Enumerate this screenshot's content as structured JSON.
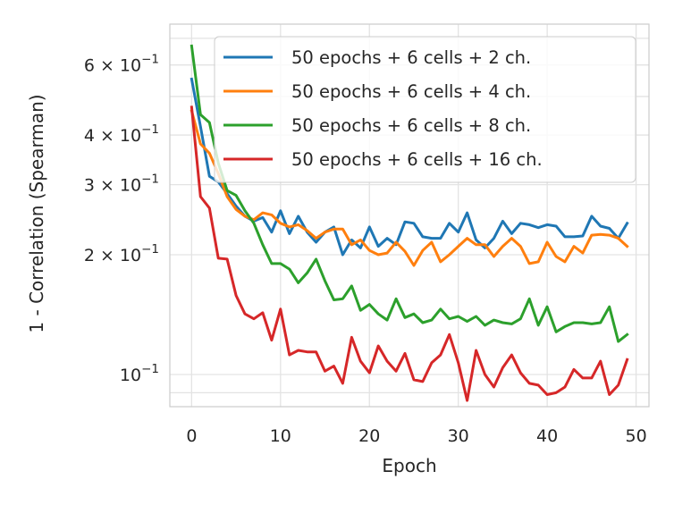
{
  "chart_data": {
    "type": "line",
    "title": "",
    "xlabel": "Epoch",
    "ylabel": "1 - Correlation (Spearman)",
    "yscale": "log",
    "xlim": [
      -2.45,
      51.45
    ],
    "ylim": [
      0.083,
      0.76
    ],
    "grid": true,
    "legend_position": "top-right",
    "x_ticks": [
      0,
      10,
      20,
      30,
      40,
      50
    ],
    "x_tick_labels": [
      "0",
      "10",
      "20",
      "30",
      "40",
      "50"
    ],
    "y_major_ticks": [
      0.1
    ],
    "y_major_tick_labels": [
      {
        "base": "10",
        "exp": "−1"
      }
    ],
    "y_minor_ticks": [
      0.2,
      0.3,
      0.4,
      0.6
    ],
    "y_minor_tick_labels": [
      {
        "base": "2 × 10",
        "exp": "−1"
      },
      {
        "base": "3 × 10",
        "exp": "−1"
      },
      {
        "base": "4 × 10",
        "exp": "−1"
      },
      {
        "base": "6 × 10",
        "exp": "−1"
      }
    ],
    "y_minor_grid": [
      0.09,
      0.5,
      0.7
    ],
    "series": [
      {
        "name": "50 epochs + 6 cells + 2 ch.",
        "color": "#1f77b4",
        "x": [
          0,
          1,
          2,
          3,
          4,
          5,
          6,
          7,
          8,
          9,
          10,
          11,
          12,
          13,
          14,
          15,
          16,
          17,
          18,
          19,
          20,
          21,
          22,
          23,
          24,
          25,
          26,
          27,
          28,
          29,
          30,
          31,
          32,
          33,
          34,
          35,
          36,
          37,
          38,
          39,
          40,
          41,
          42,
          43,
          44,
          45,
          46,
          47,
          48,
          49
        ],
        "values": [
          0.553,
          0.42,
          0.315,
          0.305,
          0.285,
          0.265,
          0.25,
          0.243,
          0.248,
          0.228,
          0.258,
          0.226,
          0.25,
          0.228,
          0.215,
          0.228,
          0.235,
          0.2,
          0.218,
          0.208,
          0.235,
          0.21,
          0.22,
          0.212,
          0.242,
          0.24,
          0.222,
          0.22,
          0.22,
          0.24,
          0.228,
          0.255,
          0.218,
          0.208,
          0.22,
          0.243,
          0.226,
          0.24,
          0.238,
          0.234,
          0.238,
          0.236,
          0.222,
          0.222,
          0.223,
          0.25,
          0.236,
          0.233,
          0.22,
          0.24
        ]
      },
      {
        "name": "50 epochs + 6 cells + 4 ch.",
        "color": "#ff7f0e",
        "x": [
          0,
          1,
          2,
          3,
          4,
          5,
          6,
          7,
          8,
          9,
          10,
          11,
          12,
          13,
          14,
          15,
          16,
          17,
          18,
          19,
          20,
          21,
          22,
          23,
          24,
          25,
          26,
          27,
          28,
          29,
          30,
          31,
          32,
          33,
          34,
          35,
          36,
          37,
          38,
          39,
          40,
          41,
          42,
          43,
          44,
          45,
          46,
          47,
          48,
          49
        ],
        "values": [
          0.46,
          0.38,
          0.36,
          0.32,
          0.28,
          0.26,
          0.25,
          0.245,
          0.255,
          0.252,
          0.24,
          0.235,
          0.238,
          0.23,
          0.22,
          0.228,
          0.232,
          0.232,
          0.212,
          0.218,
          0.205,
          0.2,
          0.202,
          0.215,
          0.204,
          0.188,
          0.205,
          0.215,
          0.192,
          0.2,
          0.21,
          0.22,
          0.212,
          0.212,
          0.198,
          0.21,
          0.22,
          0.21,
          0.19,
          0.192,
          0.215,
          0.198,
          0.192,
          0.21,
          0.202,
          0.224,
          0.225,
          0.224,
          0.22,
          0.21
        ]
      },
      {
        "name": "50 epochs + 6 cells + 8 ch.",
        "color": "#2ca02c",
        "x": [
          0,
          1,
          2,
          3,
          4,
          5,
          6,
          7,
          8,
          9,
          10,
          11,
          12,
          13,
          14,
          15,
          16,
          17,
          18,
          19,
          20,
          21,
          22,
          23,
          24,
          25,
          26,
          27,
          28,
          29,
          30,
          31,
          32,
          33,
          34,
          35,
          36,
          37,
          38,
          39,
          40,
          41,
          42,
          43,
          44,
          45,
          46,
          47,
          48,
          49
        ],
        "values": [
          0.67,
          0.45,
          0.43,
          0.34,
          0.29,
          0.282,
          0.258,
          0.24,
          0.212,
          0.19,
          0.19,
          0.184,
          0.17,
          0.18,
          0.195,
          0.172,
          0.154,
          0.155,
          0.167,
          0.145,
          0.15,
          0.142,
          0.137,
          0.155,
          0.139,
          0.142,
          0.135,
          0.137,
          0.146,
          0.138,
          0.14,
          0.136,
          0.14,
          0.133,
          0.137,
          0.135,
          0.134,
          0.138,
          0.155,
          0.133,
          0.148,
          0.128,
          0.132,
          0.135,
          0.135,
          0.134,
          0.135,
          0.148,
          0.121,
          0.126
        ]
      },
      {
        "name": "50 epochs + 6 cells + 16 ch.",
        "color": "#d62728",
        "x": [
          0,
          1,
          2,
          3,
          4,
          5,
          6,
          7,
          8,
          9,
          10,
          11,
          12,
          13,
          14,
          15,
          16,
          17,
          18,
          19,
          20,
          21,
          22,
          23,
          24,
          25,
          26,
          27,
          28,
          29,
          30,
          31,
          32,
          33,
          34,
          35,
          36,
          37,
          38,
          39,
          40,
          41,
          42,
          43,
          44,
          45,
          46,
          47,
          48,
          49
        ],
        "values": [
          0.47,
          0.28,
          0.262,
          0.196,
          0.195,
          0.158,
          0.142,
          0.138,
          0.143,
          0.122,
          0.146,
          0.112,
          0.115,
          0.114,
          0.114,
          0.102,
          0.105,
          0.095,
          0.124,
          0.108,
          0.101,
          0.118,
          0.108,
          0.102,
          0.113,
          0.097,
          0.096,
          0.107,
          0.112,
          0.126,
          0.107,
          0.086,
          0.115,
          0.1,
          0.093,
          0.104,
          0.112,
          0.101,
          0.095,
          0.094,
          0.089,
          0.09,
          0.093,
          0.103,
          0.098,
          0.098,
          0.108,
          0.089,
          0.094,
          0.109
        ]
      }
    ]
  }
}
